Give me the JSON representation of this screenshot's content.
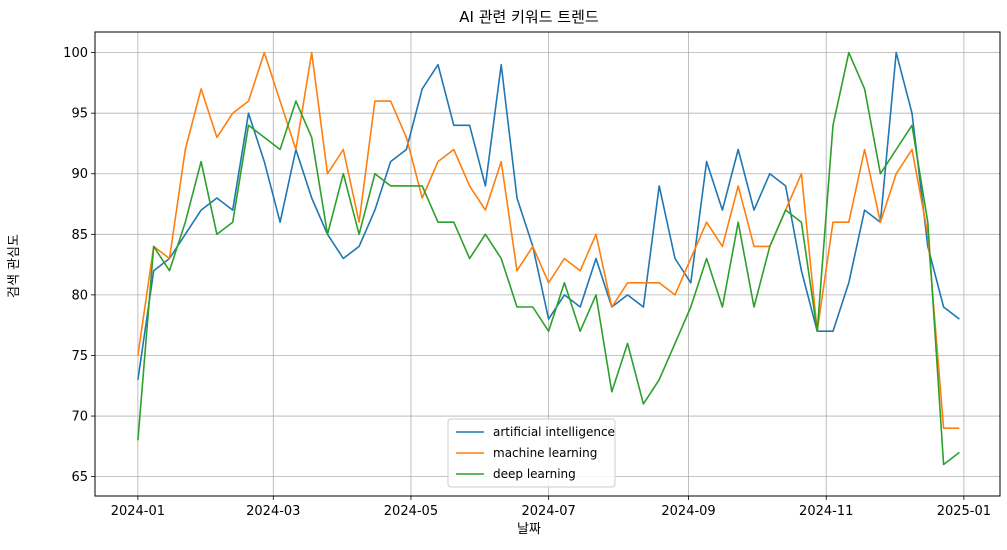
{
  "chart_data": {
    "type": "line",
    "title": "AI 관련 키워드 트렌드",
    "xlabel": "날짜",
    "ylabel": "검색 관심도",
    "x": [
      "2024-01-01",
      "2024-01-08",
      "2024-01-15",
      "2024-01-22",
      "2024-01-29",
      "2024-02-05",
      "2024-02-12",
      "2024-02-19",
      "2024-02-26",
      "2024-03-04",
      "2024-03-11",
      "2024-03-18",
      "2024-03-25",
      "2024-04-01",
      "2024-04-08",
      "2024-04-15",
      "2024-04-22",
      "2024-04-29",
      "2024-05-06",
      "2024-05-13",
      "2024-05-20",
      "2024-05-27",
      "2024-06-03",
      "2024-06-10",
      "2024-06-17",
      "2024-06-24",
      "2024-07-01",
      "2024-07-08",
      "2024-07-15",
      "2024-07-22",
      "2024-07-29",
      "2024-08-05",
      "2024-08-12",
      "2024-08-19",
      "2024-08-26",
      "2024-09-02",
      "2024-09-09",
      "2024-09-16",
      "2024-09-23",
      "2024-09-30",
      "2024-10-07",
      "2024-10-14",
      "2024-10-21",
      "2024-10-28",
      "2024-11-04",
      "2024-11-11",
      "2024-11-18",
      "2024-11-25",
      "2024-12-02",
      "2024-12-09",
      "2024-12-16",
      "2024-12-23",
      "2024-12-30"
    ],
    "x_ticks": [
      "2024-01",
      "2024-03",
      "2024-05",
      "2024-07",
      "2024-09",
      "2024-11",
      "2025-01"
    ],
    "x_tick_dates": [
      "2024-01-01",
      "2024-03-01",
      "2024-05-01",
      "2024-07-01",
      "2024-09-01",
      "2024-11-01",
      "2025-01-01"
    ],
    "xlim": [
      "2023-12-13",
      "2025-01-17"
    ],
    "y_ticks": [
      65,
      70,
      75,
      80,
      85,
      90,
      95,
      100
    ],
    "ylim": [
      63.4,
      101.7
    ],
    "grid": true,
    "legend_position": "lower center",
    "series": [
      {
        "name": "artificial intelligence",
        "color": "#1f77b4",
        "values": [
          73,
          82,
          83,
          85,
          87,
          88,
          87,
          95,
          91,
          86,
          92,
          88,
          85,
          83,
          84,
          87,
          91,
          92,
          97,
          99,
          94,
          94,
          89,
          99,
          88,
          84,
          78,
          80,
          79,
          83,
          79,
          80,
          79,
          89,
          83,
          81,
          91,
          87,
          92,
          87,
          90,
          89,
          82,
          77,
          77,
          81,
          87,
          86,
          100,
          95,
          84,
          79,
          78
        ]
      },
      {
        "name": "machine learning",
        "color": "#ff7f0e",
        "values": [
          75,
          84,
          83,
          92,
          97,
          93,
          95,
          96,
          100,
          96,
          92,
          100,
          90,
          92,
          86,
          96,
          96,
          93,
          88,
          91,
          92,
          89,
          87,
          91,
          82,
          84,
          81,
          83,
          82,
          85,
          79,
          81,
          81,
          81,
          80,
          83,
          86,
          84,
          89,
          84,
          84,
          87,
          90,
          77,
          86,
          86,
          92,
          86,
          90,
          92,
          85,
          69,
          69
        ]
      },
      {
        "name": "deep learning",
        "color": "#2ca02c",
        "values": [
          68,
          84,
          82,
          86,
          91,
          85,
          86,
          94,
          93,
          92,
          96,
          93,
          85,
          90,
          85,
          90,
          89,
          89,
          89,
          86,
          86,
          83,
          85,
          83,
          79,
          79,
          77,
          81,
          77,
          80,
          72,
          76,
          71,
          73,
          76,
          79,
          83,
          79,
          86,
          79,
          84,
          87,
          86,
          77,
          94,
          100,
          97,
          90,
          92,
          94,
          86,
          66,
          67
        ]
      }
    ]
  }
}
